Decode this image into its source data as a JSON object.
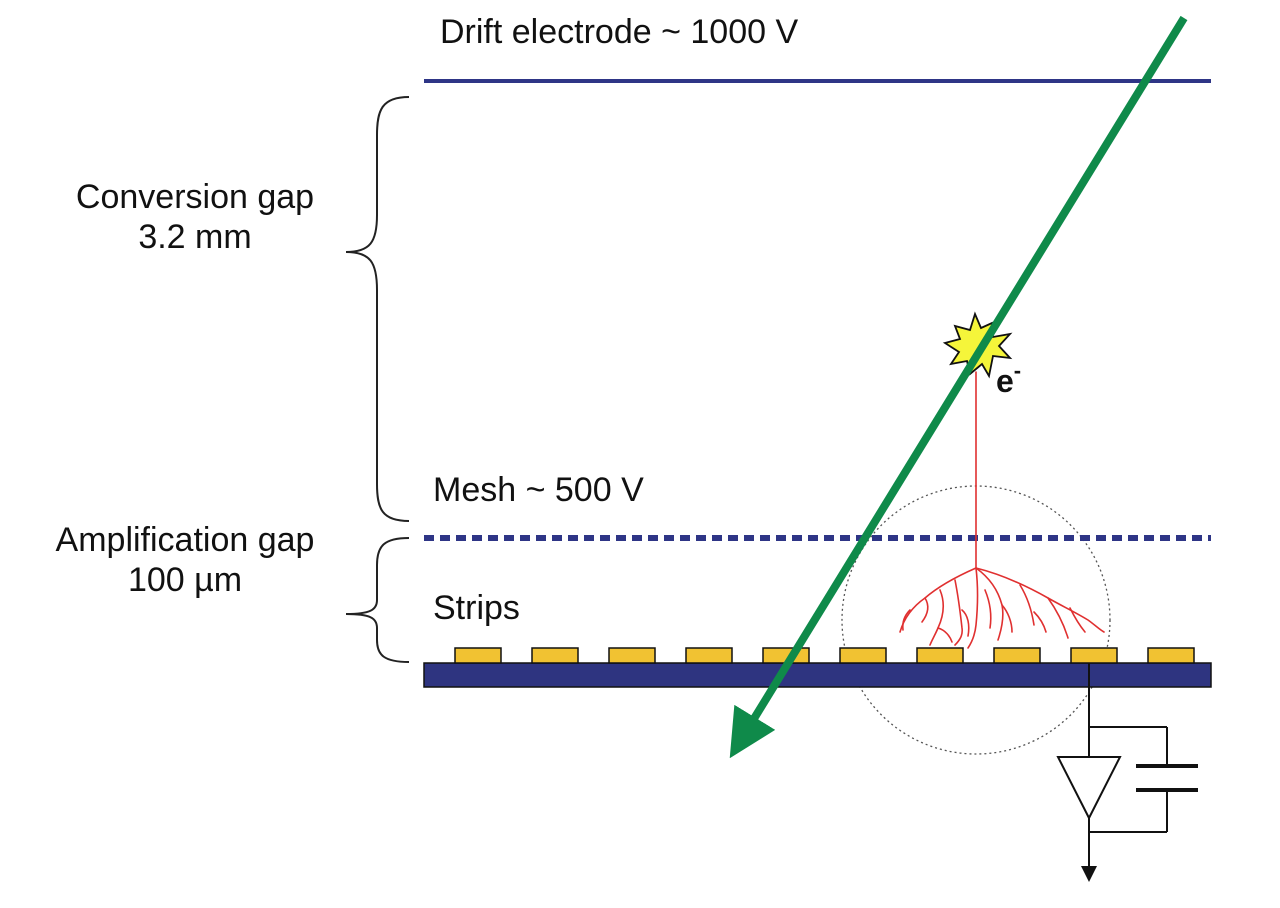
{
  "labels": {
    "drift_electrode": "Drift electrode ~ 1000 V",
    "conversion_gap_title": "Conversion gap",
    "conversion_gap_value": "3.2 mm",
    "mesh": "Mesh ~ 500 V",
    "amplification_gap_title": "Amplification gap",
    "amplification_gap_value": "100 µm",
    "strips": "Strips",
    "electron_symbol": "e",
    "electron_charge": "-"
  },
  "colors": {
    "drift_electrode": "#2e3586",
    "mesh": "#2e3586",
    "readout_board": "#2e3480",
    "strip_fill": "#f1c232",
    "particle_track": "#0f8a4a",
    "ionization_star": "#f5f53a",
    "electron_avalanche": "#e03030",
    "brace": "#222222",
    "circuit": "#111111",
    "avalanche_region_outline": "#555555"
  },
  "icons": {
    "ionization": "starburst-icon",
    "amplifier": "triangle-amplifier-icon",
    "capacitor": "capacitor-icon",
    "output": "arrow-down-icon"
  },
  "strips": {
    "count": 10
  },
  "mesh": {
    "style": "dashed"
  }
}
